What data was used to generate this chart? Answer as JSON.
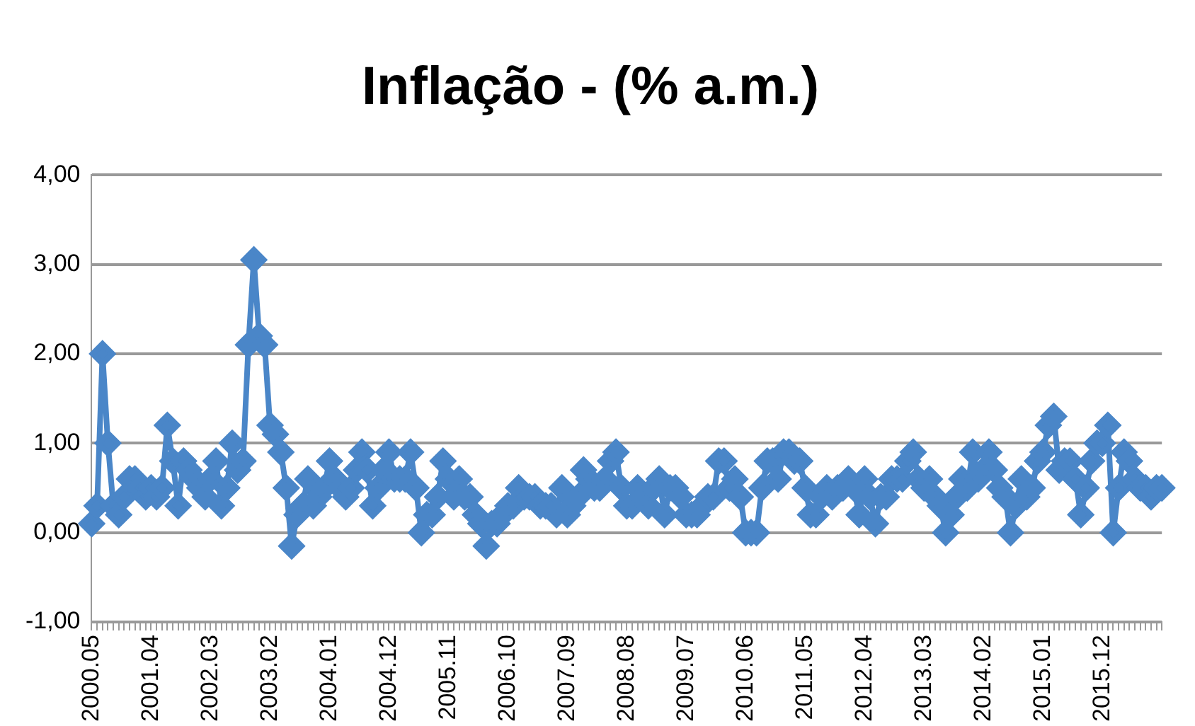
{
  "chart_data": {
    "type": "line",
    "title": "Inflação - (% a.m.)",
    "categories": [
      "2000.05",
      null,
      null,
      null,
      null,
      null,
      null,
      null,
      null,
      null,
      null,
      "2001.04",
      null,
      null,
      null,
      null,
      null,
      null,
      null,
      null,
      null,
      null,
      "2002.03",
      null,
      null,
      null,
      null,
      null,
      null,
      null,
      null,
      null,
      null,
      "2003.02",
      null,
      null,
      null,
      null,
      null,
      null,
      null,
      null,
      null,
      null,
      "2004.01",
      null,
      null,
      null,
      null,
      null,
      null,
      null,
      null,
      null,
      null,
      "2004.12",
      null,
      null,
      null,
      null,
      null,
      null,
      null,
      null,
      null,
      null,
      "2005.11",
      null,
      null,
      null,
      null,
      null,
      null,
      null,
      null,
      null,
      null,
      "2006.10",
      null,
      null,
      null,
      null,
      null,
      null,
      null,
      null,
      null,
      null,
      "2007.09",
      null,
      null,
      null,
      null,
      null,
      null,
      null,
      null,
      null,
      null,
      "2008.08",
      null,
      null,
      null,
      null,
      null,
      null,
      null,
      null,
      null,
      null,
      "2009.07",
      null,
      null,
      null,
      null,
      null,
      null,
      null,
      null,
      null,
      null,
      "2010.06",
      null,
      null,
      null,
      null,
      null,
      null,
      null,
      null,
      null,
      null,
      "2011.05",
      null,
      null,
      null,
      null,
      null,
      null,
      null,
      null,
      null,
      null,
      "2012.04",
      null,
      null,
      null,
      null,
      null,
      null,
      null,
      null,
      null,
      null,
      "2013.03",
      null,
      null,
      null,
      null,
      null,
      null,
      null,
      null,
      null,
      null,
      "2014.02",
      null,
      null,
      null,
      null,
      null,
      null,
      null,
      null,
      null,
      null,
      "2015.01",
      null,
      null,
      null,
      null,
      null,
      null,
      null,
      null,
      null,
      null,
      "2015.12",
      null,
      null,
      null,
      null,
      null,
      null,
      null,
      null,
      null,
      null,
      null
    ],
    "series": [
      {
        "color": "#4a86c8",
        "values": [
          0.1,
          0.3,
          2.0,
          1.0,
          0.3,
          0.2,
          0.4,
          0.6,
          0.6,
          0.5,
          0.4,
          0.5,
          0.4,
          0.5,
          1.2,
          0.8,
          0.3,
          0.8,
          0.7,
          0.6,
          0.5,
          0.4,
          0.6,
          0.8,
          0.3,
          0.5,
          1.0,
          0.7,
          0.8,
          2.1,
          3.05,
          2.2,
          2.1,
          1.2,
          1.1,
          0.9,
          0.5,
          -0.15,
          0.2,
          0.3,
          0.6,
          0.3,
          0.4,
          0.5,
          0.8,
          0.6,
          0.5,
          0.4,
          0.5,
          0.7,
          0.9,
          0.7,
          0.3,
          0.5,
          0.7,
          0.9,
          0.6,
          0.6,
          0.6,
          0.9,
          0.5,
          0.0,
          0.2,
          0.2,
          0.4,
          0.8,
          0.6,
          0.4,
          0.6,
          0.4,
          0.4,
          0.2,
          0.1,
          -0.15,
          0.1,
          0.1,
          0.2,
          0.3,
          0.3,
          0.5,
          0.4,
          0.4,
          0.4,
          0.3,
          0.3,
          0.3,
          0.2,
          0.5,
          0.2,
          0.3,
          0.4,
          0.7,
          0.6,
          0.5,
          0.5,
          0.6,
          0.8,
          0.9,
          0.5,
          0.3,
          0.3,
          0.5,
          0.4,
          0.3,
          0.5,
          0.6,
          0.2,
          0.5,
          0.5,
          0.4,
          0.2,
          0.2,
          0.2,
          0.3,
          0.4,
          0.4,
          0.8,
          0.8,
          0.5,
          0.6,
          0.4,
          0.0,
          0.0,
          0.0,
          0.5,
          0.8,
          0.8,
          0.6,
          0.9,
          0.9,
          0.8,
          0.8,
          0.5,
          0.2,
          0.2,
          0.4,
          0.5,
          0.4,
          0.5,
          0.5,
          0.6,
          0.5,
          0.2,
          0.6,
          0.4,
          0.1,
          0.4,
          0.4,
          0.6,
          0.6,
          0.6,
          0.8,
          0.9,
          0.6,
          0.5,
          0.6,
          0.4,
          0.3,
          0.0,
          0.2,
          0.4,
          0.6,
          0.5,
          0.9,
          0.6,
          0.7,
          0.9,
          0.7,
          0.5,
          0.4,
          0.0,
          0.3,
          0.6,
          0.4,
          0.5,
          0.8,
          0.9,
          1.2,
          1.3,
          0.7,
          0.8,
          0.8,
          0.6,
          0.2,
          0.5,
          0.8,
          1.0,
          1.0,
          1.2,
          0.0,
          0.5,
          0.9,
          0.8,
          0.6,
          0.5,
          0.5,
          0.4,
          0.5,
          0.5
        ]
      }
    ],
    "ylim": [
      -1,
      4
    ],
    "yticks": [
      {
        "value": -1,
        "label": "-1,00"
      },
      {
        "value": 0,
        "label": "0,00"
      },
      {
        "value": 1,
        "label": "1,00"
      },
      {
        "value": 2,
        "label": "2,00"
      },
      {
        "value": 3,
        "label": "3,00"
      },
      {
        "value": 4,
        "label": "4,00"
      }
    ],
    "grid": "y",
    "legend": false,
    "marker": "diamond",
    "line_style": "solid"
  }
}
